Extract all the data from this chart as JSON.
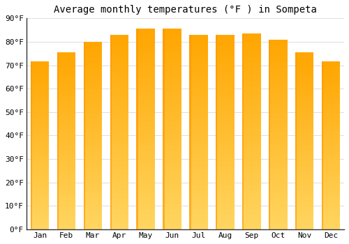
{
  "title": "Average monthly temperatures (°F ) in Sompeta",
  "months": [
    "Jan",
    "Feb",
    "Mar",
    "Apr",
    "May",
    "Jun",
    "Jul",
    "Aug",
    "Sep",
    "Oct",
    "Nov",
    "Dec"
  ],
  "values": [
    71.5,
    75.5,
    80.0,
    83.0,
    85.5,
    85.5,
    83.0,
    83.0,
    83.5,
    81.0,
    75.5,
    71.5
  ],
  "bar_color_top": "#FFA500",
  "bar_color_mid": "#FFB822",
  "bar_color_bottom": "#FFD060",
  "ylim": [
    0,
    90
  ],
  "ytick_step": 10,
  "background_color": "#ffffff",
  "grid_color": "#dddddd",
  "title_fontsize": 10,
  "tick_fontsize": 8,
  "font_family": "monospace",
  "bar_width": 0.7,
  "figsize": [
    5.0,
    3.5
  ],
  "dpi": 100
}
